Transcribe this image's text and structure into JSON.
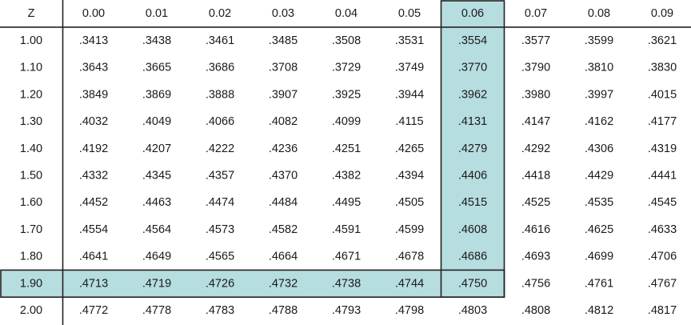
{
  "table": {
    "corner_label": "Z",
    "columns": [
      "0.00",
      "0.01",
      "0.02",
      "0.03",
      "0.04",
      "0.05",
      "0.06",
      "0.07",
      "0.08",
      "0.09"
    ],
    "rows": [
      {
        "z": "1.00",
        "values": [
          ".3413",
          ".3438",
          ".3461",
          ".3485",
          ".3508",
          ".3531",
          ".3554",
          ".3577",
          ".3599",
          ".3621"
        ]
      },
      {
        "z": "1.10",
        "values": [
          ".3643",
          ".3665",
          ".3686",
          ".3708",
          ".3729",
          ".3749",
          ".3770",
          ".3790",
          ".3810",
          ".3830"
        ]
      },
      {
        "z": "1.20",
        "values": [
          ".3849",
          ".3869",
          ".3888",
          ".3907",
          ".3925",
          ".3944",
          ".3962",
          ".3980",
          ".3997",
          ".4015"
        ]
      },
      {
        "z": "1.30",
        "values": [
          ".4032",
          ".4049",
          ".4066",
          ".4082",
          ".4099",
          ".4115",
          ".4131",
          ".4147",
          ".4162",
          ".4177"
        ]
      },
      {
        "z": "1.40",
        "values": [
          ".4192",
          ".4207",
          ".4222",
          ".4236",
          ".4251",
          ".4265",
          ".4279",
          ".4292",
          ".4306",
          ".4319"
        ]
      },
      {
        "z": "1.50",
        "values": [
          ".4332",
          ".4345",
          ".4357",
          ".4370",
          ".4382",
          ".4394",
          ".4406",
          ".4418",
          ".4429",
          ".4441"
        ]
      },
      {
        "z": "1.60",
        "values": [
          ".4452",
          ".4463",
          ".4474",
          ".4484",
          ".4495",
          ".4505",
          ".4515",
          ".4525",
          ".4535",
          ".4545"
        ]
      },
      {
        "z": "1.70",
        "values": [
          ".4554",
          ".4564",
          ".4573",
          ".4582",
          ".4591",
          ".4599",
          ".4608",
          ".4616",
          ".4625",
          ".4633"
        ]
      },
      {
        "z": "1.80",
        "values": [
          ".4641",
          ".4649",
          ".4565",
          ".4664",
          ".4671",
          ".4678",
          ".4686",
          ".4693",
          ".4699",
          ".4706"
        ]
      },
      {
        "z": "1.90",
        "values": [
          ".4713",
          ".4719",
          ".4726",
          ".4732",
          ".4738",
          ".4744",
          ".4750",
          ".4756",
          ".4761",
          ".4767"
        ]
      },
      {
        "z": "2.00",
        "values": [
          ".4772",
          ".4778",
          ".4783",
          ".4788",
          ".4793",
          ".4798",
          ".4803",
          ".4808",
          ".4812",
          ".4817"
        ]
      }
    ],
    "highlighted_column": "0.06",
    "highlighted_row": "1.90",
    "highlight_color": "#b6dde0",
    "line_color": "#222222"
  }
}
